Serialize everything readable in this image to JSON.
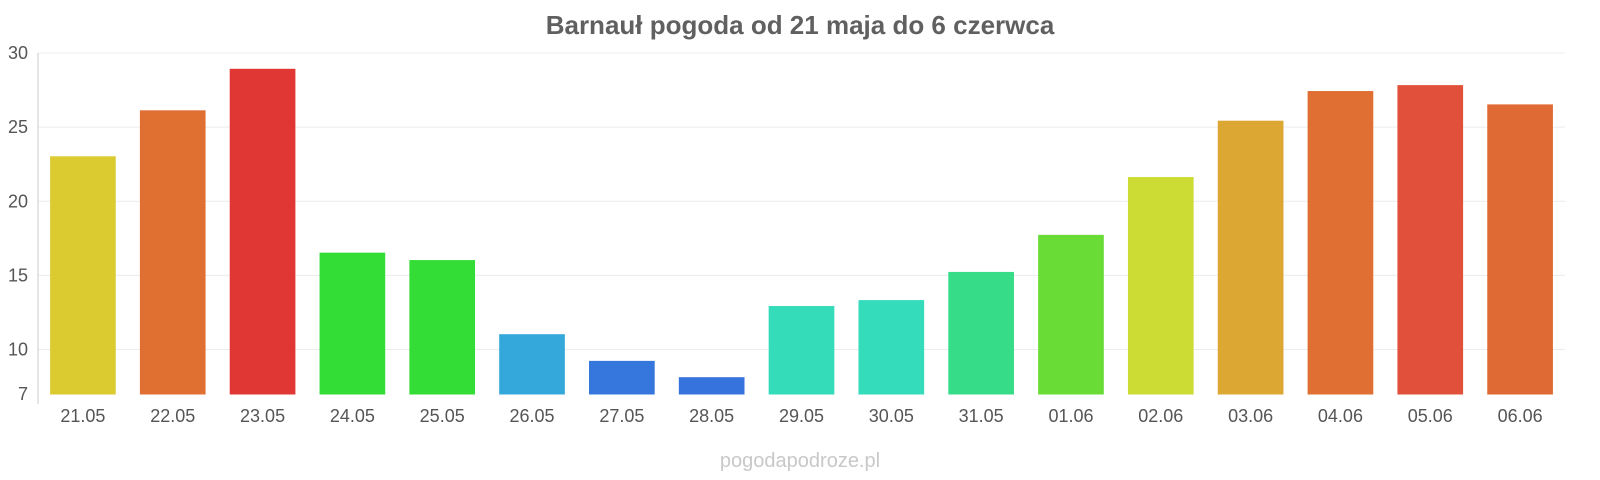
{
  "chart_data": {
    "type": "bar",
    "title": "Barnauł pogoda od 21 maja do 6 czerwca",
    "categories": [
      "21.05",
      "22.05",
      "23.05",
      "24.05",
      "25.05",
      "26.05",
      "27.05",
      "28.05",
      "29.05",
      "30.05",
      "31.05",
      "01.06",
      "02.06",
      "03.06",
      "04.06",
      "05.06",
      "06.06"
    ],
    "values": [
      23.0,
      26.1,
      28.9,
      16.5,
      16.0,
      11.0,
      9.2,
      8.1,
      12.9,
      13.3,
      15.2,
      17.7,
      21.6,
      25.4,
      27.4,
      27.8,
      26.5
    ],
    "colors": [
      "#dcca31",
      "#e06f32",
      "#e03634",
      "#34dd36",
      "#33dd36",
      "#35a8db",
      "#3577dc",
      "#3673dc",
      "#35dcb9",
      "#35dcbc",
      "#36dc88",
      "#69dc36",
      "#cddc34",
      "#dca733",
      "#e06f33",
      "#e0503a",
      "#e06a33"
    ],
    "xlabel": "",
    "ylabel": "",
    "ylim": [
      7,
      30
    ],
    "yticks": [
      7,
      10,
      15,
      20,
      25,
      30
    ],
    "grid": true,
    "legend": "none"
  },
  "watermark": "pogodapodroze.pl"
}
